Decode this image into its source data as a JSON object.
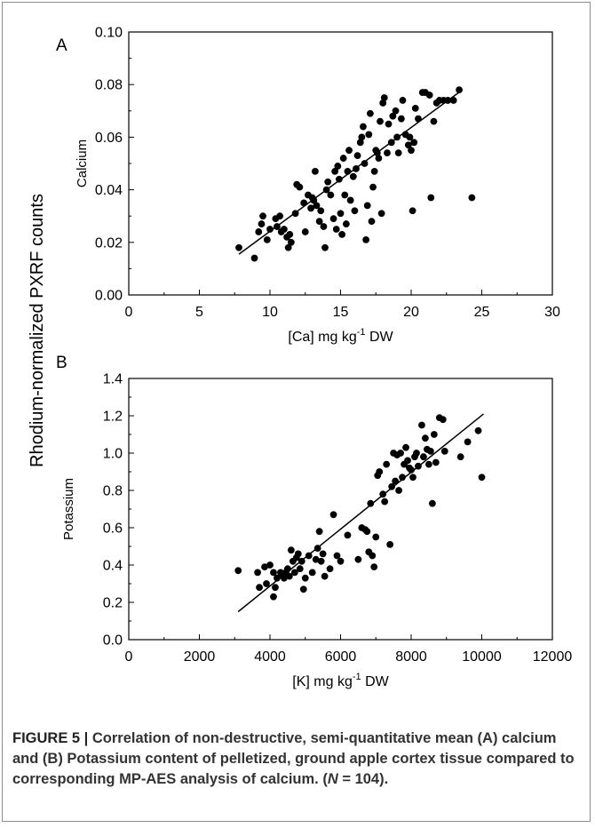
{
  "shared_ylabel": "Rhodium-normalized PXRF counts",
  "caption": {
    "figure_label": "FIGURE 5 |",
    "text_1": " Correlation of non-destructive, semi-quantitative mean (A) calcium and (B) Potassium content of pelletized, ground apple cortex tissue compared to corresponding MP-AES analysis of calcium. (",
    "n_symbol": "N",
    "text_2": " = 104)."
  },
  "chart_data": [
    {
      "type": "scatter",
      "panel": "A",
      "ylabel": "Calcium",
      "xlabel_prefix": "[Ca] mg kg",
      "xlabel_sup": "-1",
      "xlabel_suffix": " DW",
      "xlim": [
        0,
        30
      ],
      "ylim": [
        0,
        0.1
      ],
      "xticks": [
        "0",
        "5",
        "10",
        "15",
        "20",
        "25",
        "30"
      ],
      "yticks": [
        "0.00",
        "0.02",
        "0.04",
        "0.06",
        "0.08",
        "0.10"
      ],
      "trendline": {
        "x": [
          7.8,
          23.5
        ],
        "y": [
          0.0155,
          0.0775
        ]
      },
      "points": [
        [
          7.8,
          0.018
        ],
        [
          8.9,
          0.014
        ],
        [
          9.2,
          0.024
        ],
        [
          9.4,
          0.027
        ],
        [
          9.5,
          0.03
        ],
        [
          9.8,
          0.021
        ],
        [
          10.0,
          0.025
        ],
        [
          10.4,
          0.029
        ],
        [
          10.5,
          0.026
        ],
        [
          10.7,
          0.03
        ],
        [
          10.8,
          0.024
        ],
        [
          11.0,
          0.025
        ],
        [
          11.2,
          0.022
        ],
        [
          11.3,
          0.018
        ],
        [
          11.4,
          0.023
        ],
        [
          11.5,
          0.02
        ],
        [
          11.8,
          0.031
        ],
        [
          11.9,
          0.042
        ],
        [
          12.1,
          0.041
        ],
        [
          12.4,
          0.035
        ],
        [
          12.5,
          0.024
        ],
        [
          12.7,
          0.038
        ],
        [
          12.9,
          0.033
        ],
        [
          13.0,
          0.037
        ],
        [
          13.1,
          0.036
        ],
        [
          13.2,
          0.047
        ],
        [
          13.3,
          0.034
        ],
        [
          13.5,
          0.028
        ],
        [
          13.6,
          0.032
        ],
        [
          13.8,
          0.026
        ],
        [
          13.9,
          0.018
        ],
        [
          14.0,
          0.04
        ],
        [
          14.1,
          0.043
        ],
        [
          14.3,
          0.038
        ],
        [
          14.5,
          0.029
        ],
        [
          14.6,
          0.047
        ],
        [
          14.7,
          0.025
        ],
        [
          14.8,
          0.049
        ],
        [
          14.9,
          0.044
        ],
        [
          15.0,
          0.031
        ],
        [
          15.1,
          0.023
        ],
        [
          15.2,
          0.052
        ],
        [
          15.3,
          0.038
        ],
        [
          15.4,
          0.027
        ],
        [
          15.5,
          0.047
        ],
        [
          15.6,
          0.055
        ],
        [
          15.7,
          0.036
        ],
        [
          15.9,
          0.045
        ],
        [
          16.0,
          0.032
        ],
        [
          16.1,
          0.048
        ],
        [
          16.2,
          0.053
        ],
        [
          16.4,
          0.058
        ],
        [
          16.5,
          0.06
        ],
        [
          16.6,
          0.064
        ],
        [
          16.7,
          0.05
        ],
        [
          16.8,
          0.021
        ],
        [
          16.9,
          0.034
        ],
        [
          17.0,
          0.061
        ],
        [
          17.1,
          0.069
        ],
        [
          17.2,
          0.028
        ],
        [
          17.3,
          0.041
        ],
        [
          17.4,
          0.047
        ],
        [
          17.5,
          0.055
        ],
        [
          17.6,
          0.054
        ],
        [
          17.7,
          0.052
        ],
        [
          17.8,
          0.066
        ],
        [
          17.9,
          0.031
        ],
        [
          18.0,
          0.073
        ],
        [
          18.1,
          0.075
        ],
        [
          18.3,
          0.054
        ],
        [
          18.4,
          0.065
        ],
        [
          18.6,
          0.058
        ],
        [
          18.7,
          0.068
        ],
        [
          18.9,
          0.07
        ],
        [
          19.0,
          0.06
        ],
        [
          19.1,
          0.054
        ],
        [
          19.3,
          0.067
        ],
        [
          19.4,
          0.074
        ],
        [
          19.6,
          0.061
        ],
        [
          19.8,
          0.057
        ],
        [
          19.9,
          0.06
        ],
        [
          20.0,
          0.055
        ],
        [
          20.1,
          0.032
        ],
        [
          20.2,
          0.058
        ],
        [
          20.3,
          0.071
        ],
        [
          20.5,
          0.067
        ],
        [
          20.8,
          0.077
        ],
        [
          21.0,
          0.077
        ],
        [
          21.3,
          0.076
        ],
        [
          21.4,
          0.037
        ],
        [
          21.6,
          0.066
        ],
        [
          21.8,
          0.073
        ],
        [
          22.0,
          0.074
        ],
        [
          22.3,
          0.074
        ],
        [
          22.6,
          0.074
        ],
        [
          23.0,
          0.074
        ],
        [
          23.4,
          0.078
        ],
        [
          24.3,
          0.037
        ]
      ]
    },
    {
      "type": "scatter",
      "panel": "B",
      "ylabel": "Potassium",
      "xlabel_prefix": "[K] mg kg",
      "xlabel_sup": "-1",
      "xlabel_suffix": " DW",
      "xlim": [
        0,
        12000
      ],
      "ylim": [
        0,
        1.4
      ],
      "xticks": [
        "0",
        "2000",
        "4000",
        "6000",
        "8000",
        "10000",
        "12000"
      ],
      "yticks": [
        "0.0",
        "0.2",
        "0.4",
        "0.6",
        "0.8",
        "1.0",
        "1.2",
        "1.4"
      ],
      "trendline": {
        "x": [
          3100,
          10050
        ],
        "y": [
          0.15,
          1.21
        ]
      },
      "points": [
        [
          3100,
          0.37
        ],
        [
          3650,
          0.36
        ],
        [
          3700,
          0.28
        ],
        [
          3850,
          0.39
        ],
        [
          3900,
          0.3
        ],
        [
          4000,
          0.4
        ],
        [
          4100,
          0.23
        ],
        [
          4100,
          0.36
        ],
        [
          4150,
          0.28
        ],
        [
          4200,
          0.33
        ],
        [
          4300,
          0.36
        ],
        [
          4350,
          0.35
        ],
        [
          4400,
          0.33
        ],
        [
          4450,
          0.36
        ],
        [
          4500,
          0.38
        ],
        [
          4550,
          0.34
        ],
        [
          4600,
          0.48
        ],
        [
          4650,
          0.42
        ],
        [
          4700,
          0.36
        ],
        [
          4750,
          0.44
        ],
        [
          4800,
          0.46
        ],
        [
          4850,
          0.38
        ],
        [
          4900,
          0.42
        ],
        [
          4950,
          0.27
        ],
        [
          5000,
          0.33
        ],
        [
          5100,
          0.45
        ],
        [
          5200,
          0.36
        ],
        [
          5300,
          0.43
        ],
        [
          5350,
          0.49
        ],
        [
          5400,
          0.58
        ],
        [
          5450,
          0.42
        ],
        [
          5500,
          0.46
        ],
        [
          5550,
          0.34
        ],
        [
          5700,
          0.38
        ],
        [
          5800,
          0.67
        ],
        [
          5900,
          0.45
        ],
        [
          6000,
          0.42
        ],
        [
          6200,
          0.56
        ],
        [
          6500,
          0.43
        ],
        [
          6600,
          0.6
        ],
        [
          6700,
          0.59
        ],
        [
          6750,
          0.58
        ],
        [
          6800,
          0.47
        ],
        [
          6850,
          0.73
        ],
        [
          6900,
          0.45
        ],
        [
          6950,
          0.39
        ],
        [
          7000,
          0.55
        ],
        [
          7050,
          0.88
        ],
        [
          7100,
          0.9
        ],
        [
          7200,
          0.78
        ],
        [
          7250,
          0.74
        ],
        [
          7300,
          0.94
        ],
        [
          7400,
          0.51
        ],
        [
          7450,
          0.82
        ],
        [
          7500,
          1.0
        ],
        [
          7550,
          0.85
        ],
        [
          7600,
          0.99
        ],
        [
          7650,
          0.8
        ],
        [
          7700,
          1.0
        ],
        [
          7750,
          0.87
        ],
        [
          7800,
          0.94
        ],
        [
          7850,
          1.03
        ],
        [
          7900,
          0.96
        ],
        [
          7950,
          0.92
        ],
        [
          8000,
          0.91
        ],
        [
          8050,
          0.87
        ],
        [
          8100,
          0.98
        ],
        [
          8150,
          1.0
        ],
        [
          8200,
          0.93
        ],
        [
          8300,
          1.15
        ],
        [
          8350,
          0.98
        ],
        [
          8400,
          1.08
        ],
        [
          8450,
          1.02
        ],
        [
          8500,
          0.94
        ],
        [
          8550,
          1.01
        ],
        [
          8600,
          0.73
        ],
        [
          8650,
          1.1
        ],
        [
          8700,
          0.95
        ],
        [
          8800,
          1.19
        ],
        [
          8900,
          1.18
        ],
        [
          8950,
          1.01
        ],
        [
          9400,
          0.98
        ],
        [
          9600,
          1.06
        ],
        [
          9900,
          1.12
        ],
        [
          10000,
          0.87
        ]
      ]
    }
  ]
}
